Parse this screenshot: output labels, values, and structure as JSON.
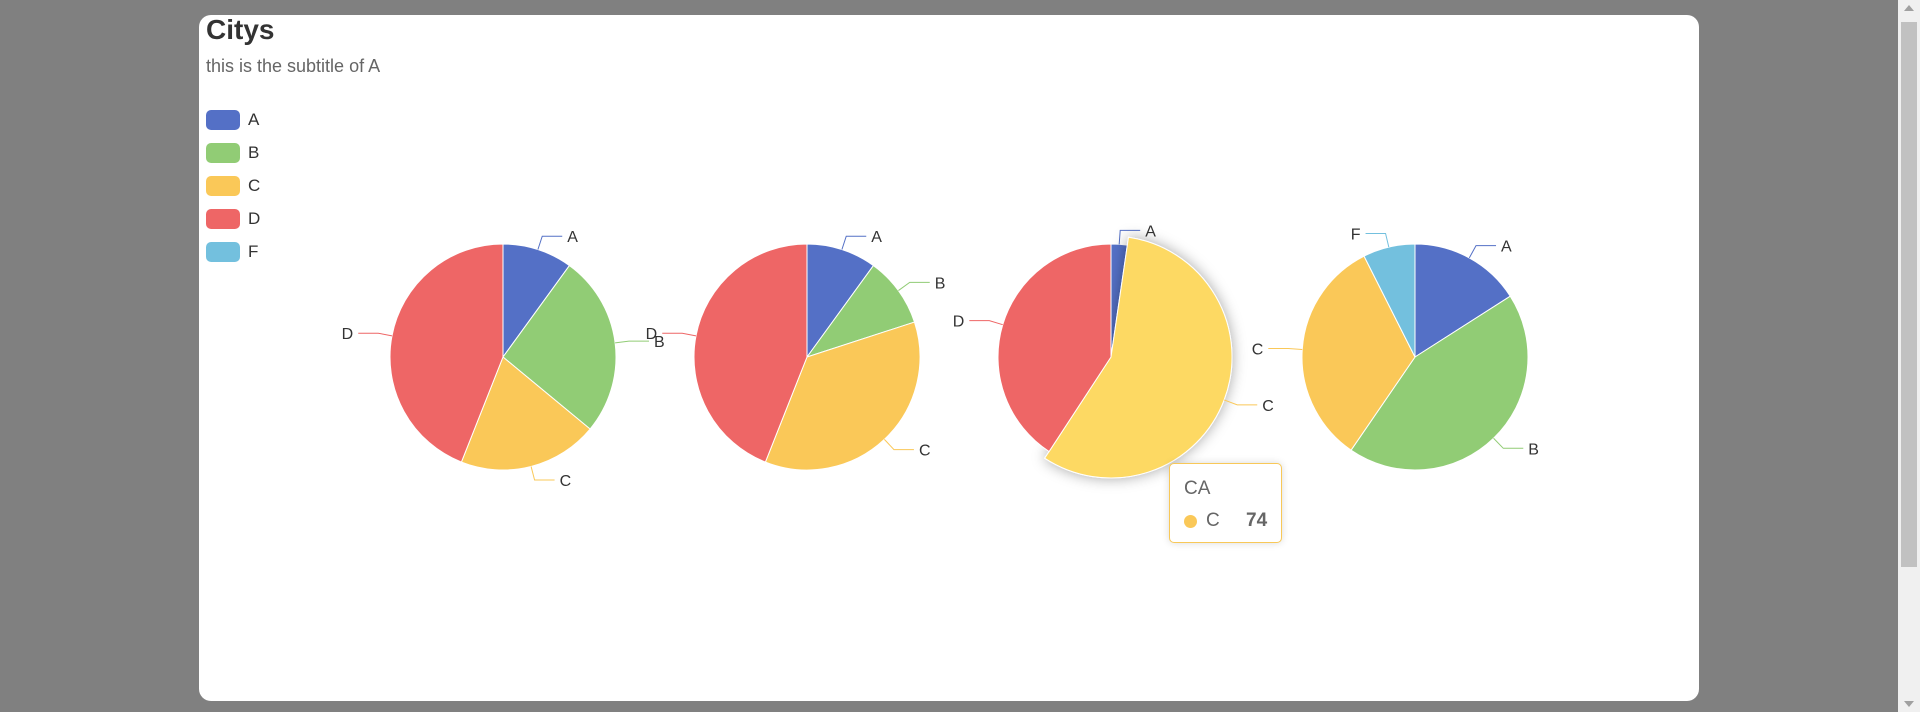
{
  "title": "Citys",
  "subtitle": "this is the subtitle of A",
  "legend": [
    {
      "name": "A",
      "color": "#5470c6"
    },
    {
      "name": "B",
      "color": "#91cc75"
    },
    {
      "name": "C",
      "color": "#fac858"
    },
    {
      "name": "D",
      "color": "#ee6666"
    },
    {
      "name": "F",
      "color": "#73c0de"
    }
  ],
  "tooltip": {
    "title": "CA",
    "name": "C",
    "value": "74",
    "color": "#fac858"
  },
  "chart_data": [
    {
      "type": "pie",
      "slices": [
        {
          "name": "A",
          "value": 10
        },
        {
          "name": "B",
          "value": 26
        },
        {
          "name": "C",
          "value": 20
        },
        {
          "name": "D",
          "value": 44
        }
      ]
    },
    {
      "type": "pie",
      "slices": [
        {
          "name": "A",
          "value": 10
        },
        {
          "name": "B",
          "value": 10
        },
        {
          "name": "C",
          "value": 36
        },
        {
          "name": "D",
          "value": 44
        }
      ]
    },
    {
      "type": "pie",
      "emphasized": "C",
      "slices": [
        {
          "name": "A",
          "value": 3
        },
        {
          "name": "C",
          "value": 74
        },
        {
          "name": "D",
          "value": 53
        }
      ]
    },
    {
      "type": "pie",
      "slices": [
        {
          "name": "A",
          "value": 15
        },
        {
          "name": "B",
          "value": 41
        },
        {
          "name": "C",
          "value": 31
        },
        {
          "name": "F",
          "value": 7
        }
      ]
    }
  ]
}
